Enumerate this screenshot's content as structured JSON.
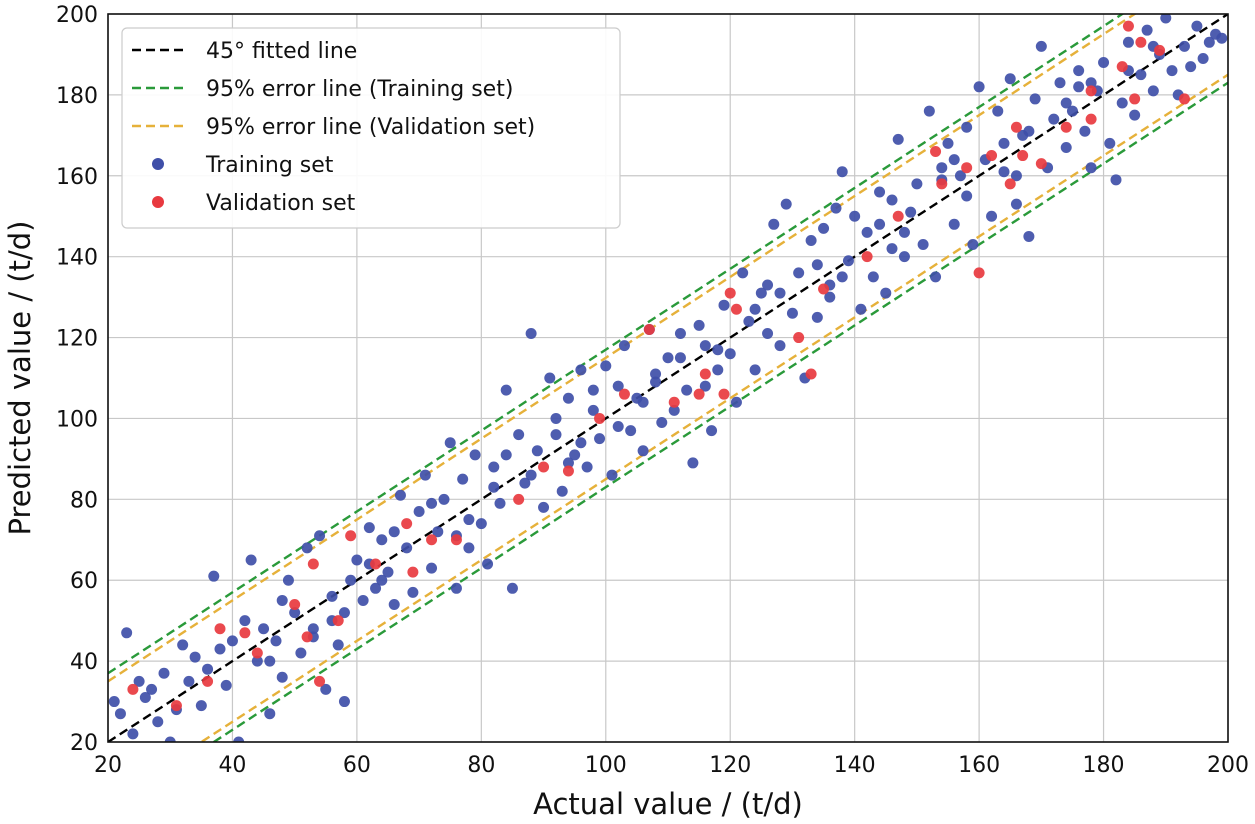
{
  "chart_data": {
    "type": "scatter",
    "title": "",
    "xlabel": "Actual value / (t/d)",
    "ylabel": "Predicted value / (t/d)",
    "xlim": [
      20,
      200
    ],
    "ylim": [
      20,
      200
    ],
    "xticks": [
      20,
      40,
      60,
      80,
      100,
      120,
      140,
      160,
      180,
      200
    ],
    "yticks": [
      20,
      40,
      60,
      80,
      100,
      120,
      140,
      160,
      180,
      200
    ],
    "xtick_labels": [
      "20",
      "40",
      "60",
      "80",
      "100",
      "120",
      "140",
      "160",
      "180",
      "200"
    ],
    "ytick_labels": [
      "20",
      "40",
      "60",
      "80",
      "100",
      "120",
      "140",
      "160",
      "180",
      "200"
    ],
    "grid": true,
    "legend_position": "top-left",
    "lines": [
      {
        "name": "45° fitted line",
        "style": "dashed",
        "color": "#000000",
        "offset": 0
      },
      {
        "name": "95% error line (Training set)",
        "style": "dashed",
        "color": "#2a9a3a",
        "offsets": [
          17,
          -17
        ]
      },
      {
        "name": "95% error line (Validation set)",
        "style": "dashed",
        "color": "#e6b13a",
        "offsets": [
          15,
          -15
        ]
      }
    ],
    "series": [
      {
        "name": "Training set",
        "color": "#3f4fa8",
        "points": [
          [
            21,
            30
          ],
          [
            22,
            27
          ],
          [
            23,
            47
          ],
          [
            24,
            22
          ],
          [
            25,
            35
          ],
          [
            26,
            31
          ],
          [
            27,
            33
          ],
          [
            28,
            25
          ],
          [
            29,
            37
          ],
          [
            30,
            20
          ],
          [
            31,
            28
          ],
          [
            32,
            44
          ],
          [
            33,
            35
          ],
          [
            34,
            41
          ],
          [
            35,
            29
          ],
          [
            36,
            38
          ],
          [
            37,
            61
          ],
          [
            38,
            43
          ],
          [
            39,
            34
          ],
          [
            40,
            45
          ],
          [
            41,
            20
          ],
          [
            42,
            50
          ],
          [
            43,
            65
          ],
          [
            44,
            40
          ],
          [
            45,
            48
          ],
          [
            46,
            27
          ],
          [
            47,
            45
          ],
          [
            48,
            36
          ],
          [
            49,
            60
          ],
          [
            50,
            52
          ],
          [
            51,
            42
          ],
          [
            52,
            68
          ],
          [
            53,
            48
          ],
          [
            54,
            71
          ],
          [
            55,
            33
          ],
          [
            56,
            56
          ],
          [
            57,
            44
          ],
          [
            58,
            30
          ],
          [
            59,
            60
          ],
          [
            60,
            65
          ],
          [
            61,
            55
          ],
          [
            62,
            73
          ],
          [
            63,
            58
          ],
          [
            64,
            70
          ],
          [
            65,
            62
          ],
          [
            66,
            54
          ],
          [
            67,
            81
          ],
          [
            68,
            68
          ],
          [
            69,
            57
          ],
          [
            70,
            77
          ],
          [
            71,
            86
          ],
          [
            72,
            63
          ],
          [
            73,
            72
          ],
          [
            74,
            80
          ],
          [
            75,
            94
          ],
          [
            76,
            58
          ],
          [
            77,
            85
          ],
          [
            78,
            68
          ],
          [
            79,
            91
          ],
          [
            80,
            74
          ],
          [
            81,
            64
          ],
          [
            82,
            83
          ],
          [
            83,
            79
          ],
          [
            84,
            107
          ],
          [
            85,
            58
          ],
          [
            86,
            96
          ],
          [
            87,
            84
          ],
          [
            88,
            121
          ],
          [
            89,
            92
          ],
          [
            90,
            78
          ],
          [
            91,
            110
          ],
          [
            92,
            96
          ],
          [
            93,
            82
          ],
          [
            94,
            105
          ],
          [
            95,
            91
          ],
          [
            96,
            112
          ],
          [
            97,
            88
          ],
          [
            98,
            102
          ],
          [
            99,
            95
          ],
          [
            100,
            113
          ],
          [
            101,
            86
          ],
          [
            102,
            108
          ],
          [
            103,
            118
          ],
          [
            104,
            97
          ],
          [
            105,
            105
          ],
          [
            106,
            92
          ],
          [
            107,
            122
          ],
          [
            108,
            109
          ],
          [
            109,
            99
          ],
          [
            110,
            115
          ],
          [
            111,
            102
          ],
          [
            112,
            121
          ],
          [
            113,
            107
          ],
          [
            114,
            89
          ],
          [
            115,
            123
          ],
          [
            116,
            118
          ],
          [
            117,
            97
          ],
          [
            118,
            112
          ],
          [
            119,
            128
          ],
          [
            120,
            116
          ],
          [
            121,
            104
          ],
          [
            122,
            136
          ],
          [
            123,
            124
          ],
          [
            124,
            112
          ],
          [
            125,
            131
          ],
          [
            126,
            121
          ],
          [
            127,
            148
          ],
          [
            128,
            118
          ],
          [
            129,
            153
          ],
          [
            130,
            126
          ],
          [
            131,
            136
          ],
          [
            132,
            110
          ],
          [
            133,
            144
          ],
          [
            134,
            125
          ],
          [
            135,
            147
          ],
          [
            136,
            133
          ],
          [
            137,
            152
          ],
          [
            138,
            161
          ],
          [
            139,
            139
          ],
          [
            140,
            150
          ],
          [
            141,
            127
          ],
          [
            142,
            146
          ],
          [
            143,
            135
          ],
          [
            144,
            156
          ],
          [
            145,
            131
          ],
          [
            146,
            154
          ],
          [
            147,
            169
          ],
          [
            148,
            140
          ],
          [
            149,
            151
          ],
          [
            150,
            158
          ],
          [
            151,
            143
          ],
          [
            152,
            176
          ],
          [
            153,
            135
          ],
          [
            154,
            162
          ],
          [
            155,
            168
          ],
          [
            156,
            148
          ],
          [
            157,
            160
          ],
          [
            158,
            172
          ],
          [
            159,
            143
          ],
          [
            160,
            182
          ],
          [
            161,
            164
          ],
          [
            162,
            150
          ],
          [
            163,
            176
          ],
          [
            164,
            161
          ],
          [
            165,
            184
          ],
          [
            166,
            153
          ],
          [
            167,
            170
          ],
          [
            168,
            145
          ],
          [
            169,
            179
          ],
          [
            170,
            192
          ],
          [
            171,
            162
          ],
          [
            172,
            174
          ],
          [
            173,
            183
          ],
          [
            174,
            167
          ],
          [
            175,
            176
          ],
          [
            176,
            186
          ],
          [
            177,
            171
          ],
          [
            178,
            162
          ],
          [
            179,
            181
          ],
          [
            180,
            188
          ],
          [
            181,
            168
          ],
          [
            182,
            159
          ],
          [
            183,
            178
          ],
          [
            184,
            193
          ],
          [
            185,
            175
          ],
          [
            186,
            185
          ],
          [
            187,
            196
          ],
          [
            188,
            181
          ],
          [
            189,
            190
          ],
          [
            190,
            199
          ],
          [
            191,
            186
          ],
          [
            192,
            180
          ],
          [
            193,
            192
          ],
          [
            194,
            187
          ],
          [
            195,
            197
          ],
          [
            196,
            189
          ],
          [
            197,
            193
          ],
          [
            198,
            195
          ],
          [
            199,
            194
          ],
          [
            53,
            46
          ],
          [
            58,
            52
          ],
          [
            62,
            64
          ],
          [
            66,
            72
          ],
          [
            72,
            79
          ],
          [
            78,
            75
          ],
          [
            84,
            91
          ],
          [
            88,
            86
          ],
          [
            92,
            100
          ],
          [
            96,
            94
          ],
          [
            102,
            98
          ],
          [
            106,
            104
          ],
          [
            112,
            115
          ],
          [
            118,
            117
          ],
          [
            124,
            127
          ],
          [
            128,
            131
          ],
          [
            134,
            138
          ],
          [
            138,
            135
          ],
          [
            144,
            148
          ],
          [
            148,
            146
          ],
          [
            154,
            159
          ],
          [
            158,
            155
          ],
          [
            164,
            168
          ],
          [
            168,
            171
          ],
          [
            174,
            178
          ],
          [
            178,
            183
          ],
          [
            184,
            186
          ],
          [
            188,
            192
          ],
          [
            46,
            40
          ],
          [
            48,
            55
          ],
          [
            56,
            50
          ],
          [
            64,
            60
          ],
          [
            76,
            71
          ],
          [
            82,
            88
          ],
          [
            94,
            89
          ],
          [
            98,
            107
          ],
          [
            108,
            111
          ],
          [
            116,
            108
          ],
          [
            126,
            133
          ],
          [
            136,
            130
          ],
          [
            146,
            142
          ],
          [
            156,
            164
          ],
          [
            166,
            160
          ],
          [
            176,
            182
          ]
        ]
      },
      {
        "name": "Validation set",
        "color": "#e8393f",
        "points": [
          [
            24,
            33
          ],
          [
            31,
            29
          ],
          [
            36,
            35
          ],
          [
            38,
            48
          ],
          [
            42,
            47
          ],
          [
            44,
            42
          ],
          [
            50,
            54
          ],
          [
            52,
            46
          ],
          [
            53,
            64
          ],
          [
            54,
            35
          ],
          [
            57,
            50
          ],
          [
            59,
            71
          ],
          [
            63,
            64
          ],
          [
            68,
            74
          ],
          [
            69,
            62
          ],
          [
            72,
            70
          ],
          [
            76,
            70
          ],
          [
            86,
            80
          ],
          [
            90,
            88
          ],
          [
            94,
            87
          ],
          [
            99,
            100
          ],
          [
            103,
            106
          ],
          [
            107,
            122
          ],
          [
            111,
            104
          ],
          [
            115,
            106
          ],
          [
            116,
            111
          ],
          [
            119,
            106
          ],
          [
            120,
            131
          ],
          [
            121,
            127
          ],
          [
            131,
            120
          ],
          [
            133,
            111
          ],
          [
            135,
            132
          ],
          [
            142,
            140
          ],
          [
            147,
            150
          ],
          [
            154,
            158
          ],
          [
            158,
            162
          ],
          [
            160,
            136
          ],
          [
            162,
            165
          ],
          [
            165,
            158
          ],
          [
            166,
            172
          ],
          [
            170,
            163
          ],
          [
            174,
            172
          ],
          [
            178,
            181
          ],
          [
            183,
            187
          ],
          [
            184,
            197
          ],
          [
            186,
            193
          ],
          [
            189,
            191
          ],
          [
            193,
            179
          ],
          [
            185,
            179
          ],
          [
            178,
            174
          ],
          [
            167,
            165
          ],
          [
            153,
            166
          ]
        ]
      }
    ]
  }
}
